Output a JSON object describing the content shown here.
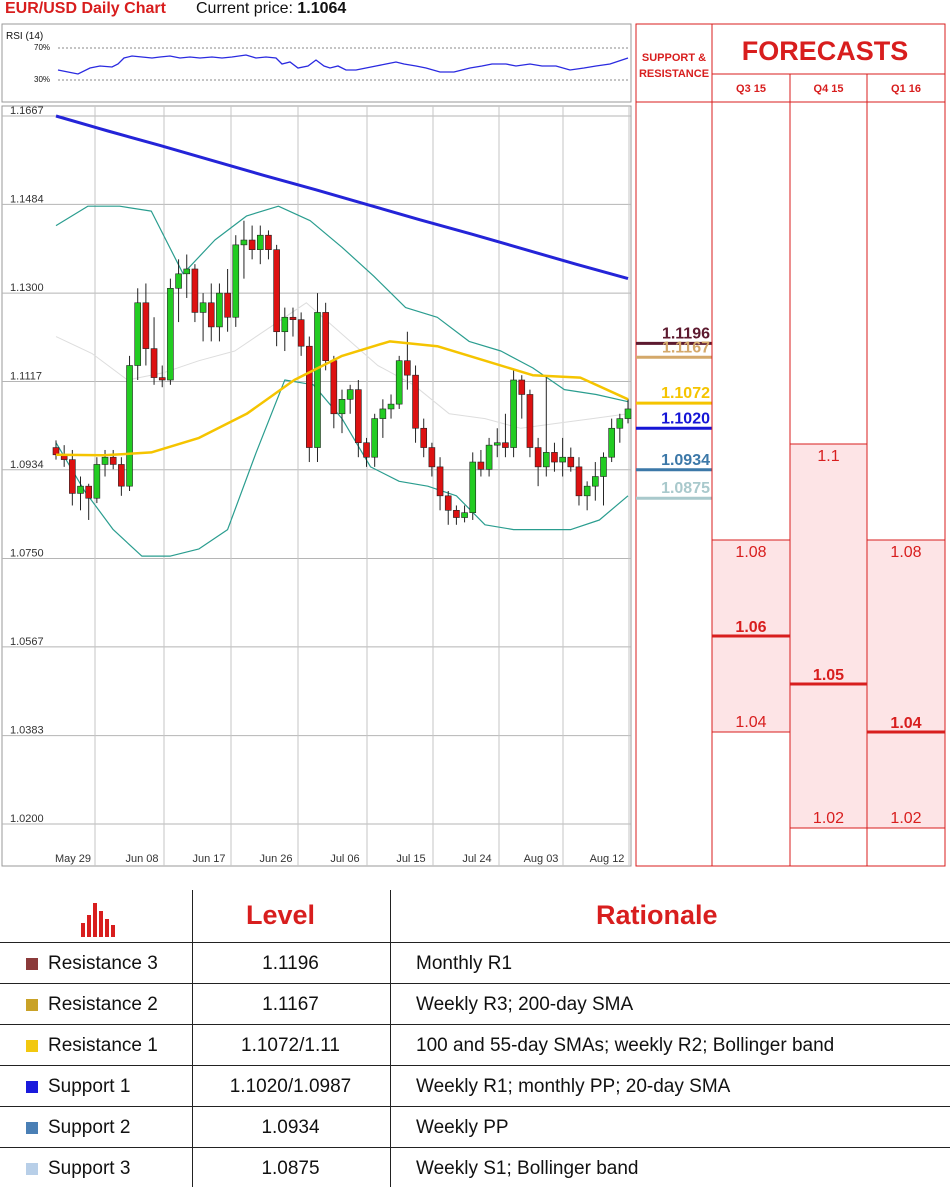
{
  "header": {
    "title": "EUR/USD Daily Chart",
    "price_label": "Current price: ",
    "price_value": "1.1064"
  },
  "rsi_panel": {
    "label": "RSI (14)",
    "levels": [
      "70%",
      "30%"
    ]
  },
  "sr_panel": {
    "header": [
      "SUPPORT &",
      "RESISTANCE"
    ],
    "levels": [
      {
        "label": "1.1196",
        "value": 1.1196,
        "color": "#5c1a2f"
      },
      {
        "label": "1.1167",
        "value": 1.1167,
        "color": "#d4a86a"
      },
      {
        "label": "1.1072",
        "value": 1.1072,
        "color": "#f5c400"
      },
      {
        "label": "1.1020",
        "value": 1.102,
        "color": "#1515d6"
      },
      {
        "label": "1.0934",
        "value": 1.0934,
        "color": "#3c78a8"
      },
      {
        "label": "1.0875",
        "value": 1.0875,
        "color": "#a9c9cc"
      }
    ]
  },
  "forecasts": {
    "title": "FORECASTS",
    "quarters": [
      {
        "label": "Q3 15",
        "high": "1.08",
        "mid": "1.06",
        "low": "1.04"
      },
      {
        "label": "Q4 15",
        "high": "1.1",
        "mid": "1.05",
        "low": "1.02"
      },
      {
        "label": "Q1 16",
        "high": "1.08",
        "mid": "1.04",
        "low": "1.02"
      }
    ]
  },
  "chart_data": {
    "type": "candlestick",
    "title": "EUR/USD Daily Chart",
    "y_ticks": [
      "1.1667",
      "1.1484",
      "1.1300",
      "1.1117",
      "1.0934",
      "1.0750",
      "1.0567",
      "1.0383",
      "1.0200"
    ],
    "ylim": [
      1.02,
      1.1667
    ],
    "x_ticks": [
      "May 29",
      "Jun 08",
      "Jun 17",
      "Jun 26",
      "Jul 06",
      "Jul 15",
      "Jul 24",
      "Aug 03",
      "Aug 12"
    ],
    "grid": true,
    "candles": [
      [
        1.098,
        1.0995,
        1.0955,
        1.0965
      ],
      [
        1.0965,
        1.0985,
        1.094,
        1.0955
      ],
      [
        1.0955,
        1.0975,
        1.086,
        1.0885
      ],
      [
        1.0885,
        1.092,
        1.085,
        1.09
      ],
      [
        1.09,
        1.0905,
        1.083,
        1.0875
      ],
      [
        1.0875,
        1.096,
        1.0865,
        1.0945
      ],
      [
        1.0945,
        1.0975,
        1.092,
        1.096
      ],
      [
        1.096,
        1.0975,
        1.0935,
        1.0945
      ],
      [
        1.0945,
        1.096,
        1.088,
        1.09
      ],
      [
        1.09,
        1.117,
        1.089,
        1.115
      ],
      [
        1.115,
        1.131,
        1.112,
        1.128
      ],
      [
        1.128,
        1.132,
        1.115,
        1.1185
      ],
      [
        1.1185,
        1.125,
        1.111,
        1.1125
      ],
      [
        1.1125,
        1.115,
        1.1105,
        1.112
      ],
      [
        1.112,
        1.133,
        1.111,
        1.131
      ],
      [
        1.131,
        1.137,
        1.124,
        1.134
      ],
      [
        1.134,
        1.138,
        1.129,
        1.135
      ],
      [
        1.135,
        1.136,
        1.124,
        1.126
      ],
      [
        1.126,
        1.13,
        1.12,
        1.128
      ],
      [
        1.128,
        1.132,
        1.12,
        1.123
      ],
      [
        1.123,
        1.132,
        1.12,
        1.13
      ],
      [
        1.13,
        1.135,
        1.122,
        1.125
      ],
      [
        1.125,
        1.142,
        1.123,
        1.14
      ],
      [
        1.14,
        1.145,
        1.133,
        1.141
      ],
      [
        1.141,
        1.144,
        1.137,
        1.139
      ],
      [
        1.139,
        1.144,
        1.136,
        1.142
      ],
      [
        1.142,
        1.143,
        1.137,
        1.139
      ],
      [
        1.139,
        1.14,
        1.119,
        1.122
      ],
      [
        1.122,
        1.127,
        1.118,
        1.125
      ],
      [
        1.125,
        1.127,
        1.121,
        1.1245
      ],
      [
        1.1245,
        1.126,
        1.117,
        1.119
      ],
      [
        1.119,
        1.121,
        1.095,
        1.098
      ],
      [
        1.098,
        1.13,
        1.095,
        1.126
      ],
      [
        1.126,
        1.128,
        1.114,
        1.116
      ],
      [
        1.116,
        1.117,
        1.102,
        1.105
      ],
      [
        1.105,
        1.11,
        1.101,
        1.108
      ],
      [
        1.108,
        1.111,
        1.105,
        1.11
      ],
      [
        1.11,
        1.112,
        1.096,
        1.099
      ],
      [
        1.099,
        1.1,
        1.094,
        1.096
      ],
      [
        1.096,
        1.105,
        1.094,
        1.104
      ],
      [
        1.104,
        1.108,
        1.1,
        1.106
      ],
      [
        1.106,
        1.109,
        1.104,
        1.107
      ],
      [
        1.107,
        1.117,
        1.106,
        1.116
      ],
      [
        1.116,
        1.122,
        1.11,
        1.113
      ],
      [
        1.113,
        1.115,
        1.099,
        1.102
      ],
      [
        1.102,
        1.104,
        1.096,
        1.098
      ],
      [
        1.098,
        1.099,
        1.092,
        1.094
      ],
      [
        1.094,
        1.096,
        1.085,
        1.088
      ],
      [
        1.088,
        1.089,
        1.082,
        1.085
      ],
      [
        1.085,
        1.086,
        1.082,
        1.0835
      ],
      [
        1.0835,
        1.086,
        1.0825,
        1.0845
      ],
      [
        1.0845,
        1.097,
        1.083,
        1.095
      ],
      [
        1.095,
        1.0975,
        1.092,
        1.0935
      ],
      [
        1.0935,
        1.1,
        1.092,
        1.0985
      ],
      [
        1.0985,
        1.102,
        1.096,
        1.099
      ],
      [
        1.099,
        1.105,
        1.096,
        1.098
      ],
      [
        1.098,
        1.114,
        1.096,
        1.112
      ],
      [
        1.112,
        1.113,
        1.104,
        1.109
      ],
      [
        1.109,
        1.11,
        1.096,
        1.098
      ],
      [
        1.098,
        1.1,
        1.09,
        1.094
      ],
      [
        1.094,
        1.113,
        1.092,
        1.097
      ],
      [
        1.097,
        1.099,
        1.093,
        1.095
      ],
      [
        1.095,
        1.1,
        1.092,
        1.096
      ],
      [
        1.096,
        1.098,
        1.093,
        1.094
      ],
      [
        1.094,
        1.096,
        1.086,
        1.088
      ],
      [
        1.088,
        1.091,
        1.085,
        1.09
      ],
      [
        1.09,
        1.095,
        1.087,
        1.092
      ],
      [
        1.092,
        1.097,
        1.086,
        1.096
      ],
      [
        1.096,
        1.104,
        1.095,
        1.102
      ],
      [
        1.102,
        1.105,
        1.099,
        1.104
      ],
      [
        1.104,
        1.108,
        1.103,
        1.106
      ]
    ],
    "series": [
      {
        "values": [
          1.1667,
          1.1636,
          1.1606,
          1.1575,
          1.1544,
          1.1514,
          1.1483,
          1.1452,
          1.1422,
          1.1391,
          1.136,
          1.133
        ]
      },
      {
        "values": [
          1.0965,
          1.0964,
          1.097,
          1.1,
          1.105,
          1.112,
          1.117,
          1.12,
          1.119,
          1.116,
          1.113,
          1.1125,
          1.108
        ]
      },
      {
        "values": [
          1.121,
          1.1175,
          1.112,
          1.1135,
          1.116,
          1.118,
          1.123,
          1.128,
          1.1215,
          1.115,
          1.111,
          1.105,
          1.104,
          1.102,
          1.103,
          1.104,
          1.105
        ]
      },
      {
        "values": [
          1.144,
          1.148,
          1.148,
          1.147,
          1.134,
          1.141,
          1.146,
          1.148,
          1.145,
          1.1395,
          1.1335,
          1.127,
          1.125,
          1.12,
          1.118,
          1.1145,
          1.11,
          1.109,
          1.1075
        ]
      },
      {
        "values": [
          1.099,
          1.089,
          1.081,
          1.0755,
          1.0755,
          1.077,
          1.081,
          1.097,
          1.112,
          1.111,
          1.104,
          1.094,
          1.091,
          1.09,
          1.088,
          1.082,
          1.081,
          1.081,
          1.081,
          1.083,
          1.088
        ]
      }
    ]
  },
  "table": {
    "headers": {
      "level": "Level",
      "rationale": "Rationale"
    },
    "rows": [
      {
        "name": "Resistance 3",
        "level": "1.1196",
        "rationale": "Monthly R1",
        "color": "#8b3a3a"
      },
      {
        "name": "Resistance 2",
        "level": "1.1167",
        "rationale": "Weekly R3; 200-day SMA",
        "color": "#c9a227"
      },
      {
        "name": "Resistance 1",
        "level": "1.1072/1.11",
        "rationale": "100 and 55-day SMAs; weekly R2; Bollinger band",
        "color": "#f2c80f"
      },
      {
        "name": "Support 1",
        "level": "1.1020/1.0987",
        "rationale": "Weekly R1; monthly PP; 20-day SMA",
        "color": "#1a1adc"
      },
      {
        "name": "Support 2",
        "level": "1.0934",
        "rationale": "Weekly PP",
        "color": "#4a7fb5"
      },
      {
        "name": "Support 3",
        "level": "1.0875",
        "rationale": "Weekly S1; Bollinger band",
        "color": "#b8cfe8"
      }
    ]
  }
}
